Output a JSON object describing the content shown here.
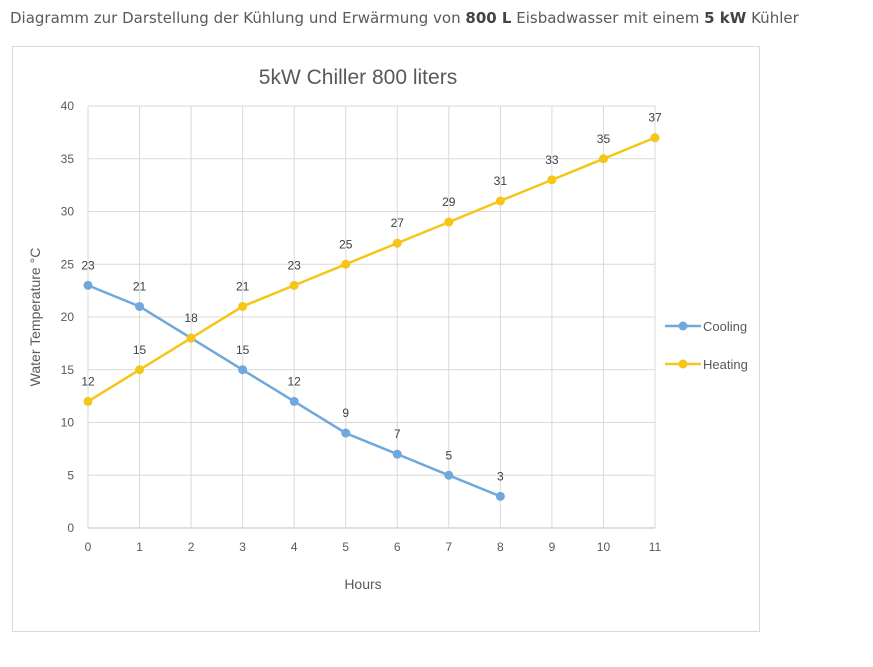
{
  "caption": {
    "part1": "Diagramm zur Darstellung der Kühlung und Erwärmung von ",
    "bold1": "800 L",
    "part2": " Eisbadwasser mit einem ",
    "bold2": "5 kW",
    "part3": " Kühler"
  },
  "chart_data": {
    "type": "line",
    "title": "5kW Chiller 800 liters",
    "xlabel": "Hours",
    "ylabel": "Water Temperature °C",
    "x": [
      0,
      1,
      2,
      3,
      4,
      5,
      6,
      7,
      8,
      9,
      10,
      11
    ],
    "xlim": [
      0,
      11
    ],
    "ylim": [
      0,
      40
    ],
    "yticks": [
      0,
      5,
      10,
      15,
      20,
      25,
      30,
      35,
      40
    ],
    "grid": true,
    "legend": "right",
    "series": [
      {
        "name": "Cooling",
        "color": "#6fa8dc",
        "x": [
          0,
          1,
          2,
          3,
          4,
          5,
          6,
          7,
          8
        ],
        "values": [
          23,
          21,
          18,
          15,
          12,
          9,
          7,
          5,
          3
        ],
        "labels": [
          "23",
          "21",
          "",
          "15",
          "12",
          "9",
          "7",
          "5",
          "3"
        ]
      },
      {
        "name": "Heating",
        "color": "#f5c518",
        "x": [
          0,
          1,
          2,
          3,
          4,
          5,
          6,
          7,
          8,
          9,
          10,
          11
        ],
        "values": [
          12,
          15,
          18,
          21,
          23,
          25,
          27,
          29,
          31,
          33,
          35,
          37
        ],
        "labels": [
          "12",
          "15",
          "18",
          "21",
          "23",
          "25",
          "27",
          "29",
          "31",
          "33",
          "35",
          "37"
        ]
      }
    ]
  }
}
